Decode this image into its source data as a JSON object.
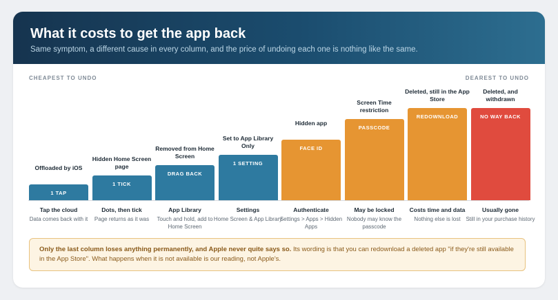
{
  "header": {
    "title": "What it costs to get the app back",
    "subtitle": "Same symptom, a different cause in every column, and the price of undoing each one is nothing like the same."
  },
  "scale": {
    "left_label": "CHEAPEST TO UNDO",
    "right_label": "DEAREST TO UNDO"
  },
  "columns": [
    {
      "above": "Offloaded by iOS",
      "bar_label": "1 TAP",
      "level": 0.17,
      "color": "#2e7aa0",
      "caption": "Tap the cloud",
      "description": "Data comes back with it"
    },
    {
      "above": "Hidden Home Screen page",
      "bar_label": "1 TICK",
      "level": 0.27,
      "color": "#2e7aa0",
      "caption": "Dots, then tick",
      "description": "Page returns as it was"
    },
    {
      "above": "Removed from Home Screen",
      "bar_label": "DRAG BACK",
      "level": 0.38,
      "color": "#2e7aa0",
      "caption": "App Library",
      "description": "Touch and hold, add to Home Screen"
    },
    {
      "above": "Set to App Library Only",
      "bar_label": "1 SETTING",
      "level": 0.49,
      "color": "#2e7aa0",
      "caption": "Settings",
      "description": "Home Screen & App Library"
    },
    {
      "above": "Hidden app",
      "bar_label": "FACE ID",
      "level": 0.66,
      "color": "#e69532",
      "caption": "Authenticate",
      "description": "Settings > Apps > Hidden Apps"
    },
    {
      "above": "Screen Time restriction",
      "bar_label": "PASSCODE",
      "level": 0.88,
      "color": "#e69532",
      "caption": "May be locked",
      "description": "Nobody may know the passcode"
    },
    {
      "above": "Deleted, still in the App Store",
      "bar_label": "REDOWNLOAD",
      "level": 1.0,
      "color": "#e69532",
      "caption": "Costs time and data",
      "description": "Nothing else is lost"
    },
    {
      "above": "Deleted, and withdrawn",
      "bar_label": "NO WAY BACK",
      "level": 1.0,
      "color": "#e04b3e",
      "caption": "Usually gone",
      "description": "Still in your purchase history"
    }
  ],
  "note": {
    "strong": "Only the last column loses anything permanently, and Apple never quite says so.",
    "rest": " Its wording is that you can redownload a deleted app \"if they're still available in the App Store\". What happens when it is not available is our reading, not Apple's."
  }
}
